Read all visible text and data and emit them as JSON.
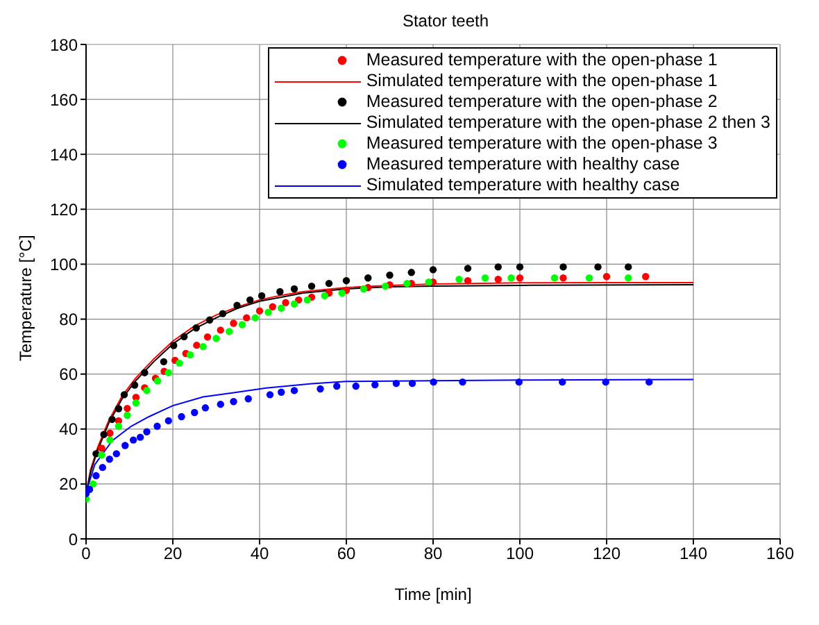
{
  "chart_data": {
    "type": "scatter",
    "title": "Stator teeth",
    "xlabel": "Time [min]",
    "ylabel": "Temperature [°C]",
    "xlim": [
      0,
      160
    ],
    "xticks": [
      0,
      20,
      40,
      60,
      80,
      100,
      120,
      140,
      160
    ],
    "ylim": [
      0,
      180
    ],
    "yticks": [
      0,
      20,
      40,
      60,
      80,
      100,
      120,
      140,
      160,
      180
    ],
    "grid": true,
    "legend": "top right",
    "series": [
      {
        "marker": "circle",
        "name": "Measured temperature with the open-phase 1",
        "color": "#ff0000",
        "x": [
          3.6,
          5.5,
          7.5,
          9.5,
          11.5,
          13.5,
          16,
          18,
          20.5,
          23,
          25.5,
          28,
          31,
          34,
          37,
          40,
          43,
          46,
          49,
          52,
          56,
          60,
          65,
          70,
          75,
          80,
          88,
          95,
          100,
          110,
          120,
          129
        ],
        "values": [
          33,
          38.5,
          43,
          47.5,
          51.5,
          55,
          58.5,
          61,
          65,
          67.5,
          70.5,
          73.5,
          76,
          78.5,
          80.5,
          83,
          84.5,
          86,
          87,
          88,
          89.5,
          90.5,
          91.5,
          92.5,
          93,
          93.5,
          94,
          94.5,
          95,
          95,
          95.5,
          95.5
        ]
      },
      {
        "type": "line",
        "marker": "none",
        "name": "Simulated temperature with the open-phase 1",
        "color": "#ff0000",
        "x": [
          0,
          1,
          2.6,
          5.2,
          8.3,
          11.4,
          15.6,
          20,
          25,
          30,
          35,
          40,
          45,
          50,
          60,
          70,
          80,
          100,
          120,
          140
        ],
        "values": [
          16.5,
          25,
          33,
          43,
          52,
          58.5,
          65.5,
          72,
          77.5,
          81.5,
          84.5,
          87,
          88.7,
          90,
          91.5,
          92.3,
          92.8,
          93.2,
          93.3,
          93.3
        ]
      },
      {
        "marker": "circle",
        "name": "Measured temperature with the open-phase 2",
        "color": "#000000",
        "x": [
          2.3,
          4.1,
          6,
          7.5,
          8.8,
          11.2,
          13.5,
          17.9,
          20.2,
          22.6,
          25.4,
          28.5,
          31.5,
          34.8,
          37.8,
          40.5,
          44.7,
          48,
          52,
          56,
          60,
          65,
          70,
          75,
          80,
          88,
          95,
          100,
          110,
          118,
          125
        ],
        "values": [
          31,
          38,
          43.5,
          47.4,
          52.5,
          56,
          60.5,
          64.5,
          70.4,
          73.6,
          76.8,
          79.7,
          82,
          85,
          87,
          88.5,
          90,
          91,
          92,
          93,
          94,
          95,
          96,
          97,
          98,
          98.5,
          99,
          99,
          99,
          99,
          99
        ]
      },
      {
        "type": "line",
        "marker": "none",
        "name": "Simulated temperature with the open-phase 2 then 3",
        "color": "#000000",
        "x": [
          0,
          1,
          2.6,
          5.2,
          8.3,
          11.4,
          15.6,
          20,
          25,
          30,
          35,
          40,
          45,
          50,
          60,
          70,
          80,
          100,
          140
        ],
        "values": [
          16,
          24,
          32,
          42,
          51,
          57.5,
          64.5,
          71,
          76.5,
          80.5,
          84,
          86.5,
          88,
          89.5,
          91,
          91.8,
          92,
          92.3,
          92.5
        ]
      },
      {
        "marker": "circle",
        "name": "Measured temperature with the open-phase 3",
        "color": "#00ff00",
        "x": [
          0,
          1.6,
          3.6,
          5.5,
          7.5,
          9.5,
          11.5,
          14,
          16.5,
          19,
          21.5,
          24,
          27,
          30,
          33,
          36,
          39,
          42,
          45,
          48,
          51,
          55,
          59,
          64,
          69,
          74,
          79,
          86,
          92,
          98,
          108,
          116,
          125
        ],
        "values": [
          14.5,
          20,
          30.5,
          36,
          41,
          45,
          49.5,
          54,
          57.5,
          60.5,
          64,
          67,
          70,
          73,
          75.5,
          78,
          80.5,
          82.5,
          84,
          85.5,
          87,
          88.5,
          89.5,
          91,
          92,
          93,
          93.5,
          94.5,
          95,
          95,
          95,
          95,
          95
        ]
      },
      {
        "marker": "circle",
        "name": "Measured temperature with healthy case",
        "color": "#0000ff",
        "x": [
          0,
          0.8,
          2.3,
          3.8,
          5.4,
          7,
          9,
          10.9,
          12.5,
          14,
          16.4,
          19,
          22,
          25,
          27.5,
          31,
          34,
          37.4,
          42.4,
          45,
          48,
          54,
          57.8,
          62.2,
          66.6,
          71.5,
          75.2,
          80.1,
          86.8,
          99.8,
          109.8,
          119.8,
          129.8
        ],
        "values": [
          16.5,
          18,
          23,
          26,
          29,
          31,
          34,
          36,
          37,
          39,
          41,
          43,
          44.5,
          46,
          47.7,
          49,
          50,
          51,
          52.5,
          53.4,
          54,
          54.6,
          55.6,
          55.6,
          56.1,
          56.6,
          56.6,
          57.1,
          57.1,
          57.1,
          57.1,
          57.1,
          57.1
        ]
      },
      {
        "type": "line",
        "marker": "none",
        "name": "Simulated temperature with healthy case",
        "color": "#0000ff",
        "x": [
          0,
          2,
          6,
          10.4,
          14.5,
          20,
          27,
          34.3,
          41.5,
          52,
          60,
          80,
          100,
          140
        ],
        "values": [
          17,
          27,
          35.7,
          41,
          44.5,
          48.5,
          51.7,
          53.3,
          54.9,
          56.5,
          57.3,
          57.6,
          57.8,
          58
        ]
      }
    ]
  }
}
